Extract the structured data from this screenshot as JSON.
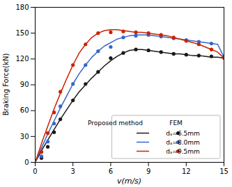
{
  "chart_data": {
    "type": "line",
    "xlabel": "v(m/s)",
    "ylabel": "Braking Force(kN)",
    "xlim": [
      0,
      15
    ],
    "ylim": [
      0,
      180
    ],
    "xticks": [
      0,
      3,
      6,
      9,
      12,
      15
    ],
    "yticks": [
      0,
      30,
      60,
      90,
      120,
      150,
      180
    ],
    "grid": false,
    "legend": "lower right",
    "legend_headers": [
      "Proposed method",
      "FEM"
    ],
    "series": [
      {
        "name": "dₛ=6.5mm",
        "type": "line",
        "line_style": "solid",
        "color": "#1a1a1a",
        "x": [
          0,
          0.3,
          0.6,
          1.0,
          1.5,
          2.0,
          2.5,
          3.0,
          3.5,
          4.0,
          4.5,
          5.0,
          5.5,
          6.0,
          6.5,
          7.0,
          7.5,
          8.0,
          8.5,
          9.0,
          9.5,
          10.0,
          10.5,
          11.0,
          11.5,
          12.0,
          12.5,
          13.0,
          13.5,
          14.0,
          14.5,
          15.0
        ],
        "values": [
          0,
          8,
          16,
          26,
          38,
          50,
          61,
          72,
          82,
          90,
          98,
          105,
          112,
          118,
          123,
          127,
          130,
          131,
          131,
          130,
          129,
          128,
          127,
          126,
          126,
          125,
          124,
          124,
          123,
          122,
          122,
          121
        ]
      },
      {
        "name": "dₛ=8.0mm",
        "type": "line",
        "line_style": "solid",
        "color": "#3366cc",
        "x": [
          0,
          0.3,
          0.6,
          1.0,
          1.5,
          2.0,
          2.5,
          3.0,
          3.5,
          4.0,
          4.5,
          5.0,
          5.5,
          6.0,
          6.5,
          7.0,
          7.5,
          8.0,
          8.5,
          9.0,
          9.5,
          10.0,
          10.5,
          11.0,
          11.5,
          12.0,
          12.5,
          13.0,
          13.5,
          14.0,
          14.5,
          15.0
        ],
        "values": [
          0,
          10,
          20,
          33,
          48,
          63,
          77,
          91,
          103,
          113,
          122,
          129,
          135,
          139,
          143,
          145,
          147,
          148,
          148,
          148,
          147,
          146,
          145,
          144,
          143,
          142,
          141,
          140,
          139,
          138,
          137,
          122
        ]
      },
      {
        "name": "dₛ=9.5mm",
        "type": "line",
        "line_style": "solid",
        "color": "#cc2200",
        "x": [
          0,
          0.3,
          0.6,
          1.0,
          1.5,
          2.0,
          2.5,
          3.0,
          3.5,
          4.0,
          4.5,
          5.0,
          5.5,
          6.0,
          6.5,
          7.0,
          7.5,
          8.0,
          8.5,
          9.0,
          9.5,
          10.0,
          10.5,
          11.0,
          11.5,
          12.0,
          12.5,
          13.0,
          13.5,
          14.0,
          14.5,
          15.0
        ],
        "values": [
          0,
          13,
          26,
          42,
          62,
          80,
          97,
          113,
          127,
          137,
          145,
          150,
          153,
          154,
          154,
          153,
          152,
          151,
          151,
          150,
          149,
          148,
          147,
          145,
          143,
          141,
          139,
          137,
          134,
          131,
          128,
          121
        ]
      },
      {
        "name": "dₛ=6.5mm",
        "type": "scatter",
        "marker": "circle",
        "color": "#1a1a1a",
        "x": [
          0.5,
          1.0,
          1.5,
          2.0,
          3.0,
          4.0,
          5.0,
          6.0,
          7.0,
          8.0,
          9.0,
          10.0,
          11.0,
          12.0,
          13.0,
          14.0,
          15.0
        ],
        "values": [
          5,
          18,
          35,
          50,
          72,
          91,
          105,
          121,
          127,
          131,
          130,
          128,
          126,
          125,
          124,
          123,
          122
        ]
      },
      {
        "name": "dₛ=8.0mm",
        "type": "scatter",
        "marker": "circle",
        "color": "#3366cc",
        "x": [
          0.5,
          1.0,
          1.5,
          2.0,
          3.0,
          4.0,
          5.0,
          6.0,
          7.0,
          8.0,
          9.0,
          10.0,
          11.0,
          12.0,
          13.0,
          14.0,
          15.0
        ],
        "values": [
          7,
          24,
          45,
          65,
          91,
          113,
          129,
          134,
          145,
          147,
          148,
          146,
          144,
          142,
          140,
          138,
          122
        ]
      },
      {
        "name": "dₛ=9.5mm",
        "type": "scatter",
        "marker": "circle",
        "color": "#cc2200",
        "x": [
          0.5,
          1.0,
          1.5,
          2.0,
          3.0,
          4.0,
          5.0,
          6.0,
          7.0,
          8.0,
          9.0,
          10.0,
          11.0,
          12.0,
          13.0,
          14.0,
          15.0
        ],
        "values": [
          12,
          34,
          58,
          82,
          113,
          137,
          150,
          151,
          152,
          151,
          150,
          148,
          145,
          141,
          137,
          131,
          121
        ]
      }
    ]
  }
}
